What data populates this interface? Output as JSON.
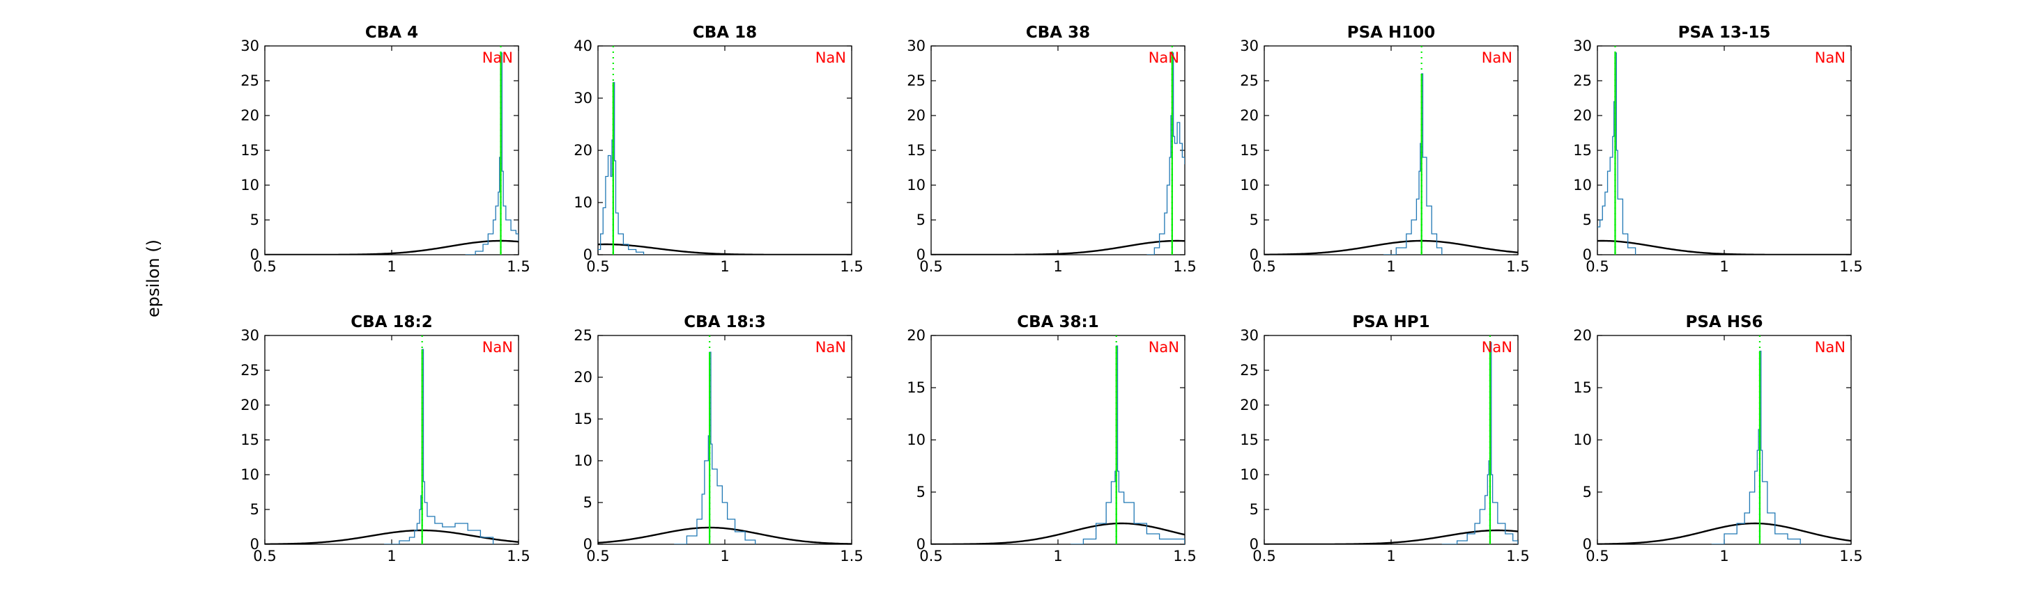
{
  "figure": {
    "ylabel": "epsilon ()",
    "colors": {
      "histogram": "#1f77b4",
      "gaussian": "#000000",
      "peak_line": "#00ee00",
      "nan_label": "#ff0000",
      "axes": "#000000"
    }
  },
  "chart_data": [
    {
      "type": "line",
      "title": "CBA 4",
      "annotation": "NaN",
      "xlim": [
        0.5,
        1.5
      ],
      "xticks": [
        0.5,
        1,
        1.5
      ],
      "ylim": [
        0,
        30
      ],
      "yticks": [
        0,
        5,
        10,
        15,
        20,
        25,
        30
      ],
      "peak_x": 1.43,
      "peak_y": 29,
      "mu": 1.43,
      "sigma": 0.2,
      "gauss_peak": 2.0,
      "series": [
        {
          "x": [
            1.29,
            1.33,
            1.36,
            1.38,
            1.4,
            1.41,
            1.42,
            1.425,
            1.43,
            1.435,
            1.44,
            1.45,
            1.47,
            1.49,
            1.5
          ],
          "y": [
            0,
            0.5,
            1.5,
            3,
            5,
            7,
            9,
            14,
            29,
            12,
            7,
            5,
            3.5,
            3,
            2
          ]
        }
      ]
    },
    {
      "type": "line",
      "title": "CBA 18",
      "annotation": "NaN",
      "xlim": [
        0.5,
        1.5
      ],
      "xticks": [
        0.5,
        1,
        1.5
      ],
      "ylim": [
        0,
        40
      ],
      "yticks": [
        0,
        10,
        20,
        30,
        40
      ],
      "peak_x": 0.56,
      "peak_y": 33,
      "mu": 0.53,
      "sigma": 0.2,
      "gauss_peak": 2.0,
      "series": [
        {
          "x": [
            0.5,
            0.51,
            0.52,
            0.53,
            0.54,
            0.55,
            0.555,
            0.56,
            0.565,
            0.57,
            0.58,
            0.6,
            0.62,
            0.65,
            0.68
          ],
          "y": [
            1,
            4,
            9,
            15,
            19,
            15,
            22,
            33,
            18,
            8,
            4,
            2,
            1,
            0.5,
            0
          ]
        }
      ]
    },
    {
      "type": "line",
      "title": "CBA 38",
      "annotation": "NaN",
      "xlim": [
        0.5,
        1.5
      ],
      "xticks": [
        0.5,
        1,
        1.5
      ],
      "ylim": [
        0,
        30
      ],
      "yticks": [
        0,
        5,
        10,
        15,
        20,
        25,
        30
      ],
      "peak_x": 1.45,
      "peak_y": 29,
      "mu": 1.47,
      "sigma": 0.2,
      "gauss_peak": 2.0,
      "series": [
        {
          "x": [
            1.35,
            1.38,
            1.4,
            1.42,
            1.43,
            1.44,
            1.445,
            1.45,
            1.455,
            1.46,
            1.47,
            1.48,
            1.49,
            1.5
          ],
          "y": [
            0,
            1,
            3,
            6,
            10,
            14,
            20,
            29,
            17,
            16,
            19,
            16,
            14,
            13
          ]
        }
      ]
    },
    {
      "type": "line",
      "title": "PSA H100",
      "annotation": "NaN",
      "xlim": [
        0.5,
        1.5
      ],
      "xticks": [
        0.5,
        1,
        1.5
      ],
      "ylim": [
        0,
        30
      ],
      "yticks": [
        0,
        5,
        10,
        15,
        20,
        25,
        30
      ],
      "peak_x": 1.12,
      "peak_y": 26,
      "mu": 1.12,
      "sigma": 0.2,
      "gauss_peak": 2.0,
      "series": [
        {
          "x": [
            0.97,
            1.02,
            1.06,
            1.08,
            1.1,
            1.11,
            1.115,
            1.12,
            1.125,
            1.13,
            1.14,
            1.16,
            1.18,
            1.2
          ],
          "y": [
            0,
            1,
            3,
            5,
            8,
            12,
            16,
            26,
            14,
            14,
            7,
            3,
            1,
            0
          ]
        }
      ]
    },
    {
      "type": "line",
      "title": "PSA 13-15",
      "annotation": "NaN",
      "xlim": [
        0.5,
        1.5
      ],
      "xticks": [
        0.5,
        1,
        1.5
      ],
      "ylim": [
        0,
        30
      ],
      "yticks": [
        0,
        5,
        10,
        15,
        20,
        25,
        30
      ],
      "peak_x": 0.57,
      "peak_y": 29,
      "mu": 0.52,
      "sigma": 0.2,
      "gauss_peak": 2.0,
      "series": [
        {
          "x": [
            0.5,
            0.51,
            0.52,
            0.53,
            0.54,
            0.55,
            0.56,
            0.565,
            0.57,
            0.575,
            0.58,
            0.6,
            0.62,
            0.65
          ],
          "y": [
            4,
            5,
            7,
            9,
            12,
            14,
            17,
            22,
            29,
            15,
            8,
            3,
            1,
            0
          ]
        }
      ]
    },
    {
      "type": "line",
      "title": "CBA 18:2",
      "annotation": "NaN",
      "xlim": [
        0.5,
        1.5
      ],
      "xticks": [
        0.5,
        1,
        1.5
      ],
      "ylim": [
        0,
        30
      ],
      "yticks": [
        0,
        5,
        10,
        15,
        20,
        25,
        30
      ],
      "peak_x": 1.12,
      "peak_y": 28,
      "mu": 1.12,
      "sigma": 0.2,
      "gauss_peak": 2.0,
      "series": [
        {
          "x": [
            0.97,
            1.03,
            1.07,
            1.09,
            1.1,
            1.11,
            1.115,
            1.12,
            1.125,
            1.13,
            1.14,
            1.17,
            1.2,
            1.25,
            1.3,
            1.35,
            1.4
          ],
          "y": [
            0,
            0.5,
            1,
            2,
            3,
            5,
            7,
            28,
            9,
            6,
            4,
            3,
            2.5,
            3,
            2,
            1,
            0
          ]
        }
      ]
    },
    {
      "type": "line",
      "title": "CBA 18:3",
      "annotation": "NaN",
      "xlim": [
        0.5,
        1.5
      ],
      "xticks": [
        0.5,
        1,
        1.5
      ],
      "ylim": [
        0,
        25
      ],
      "yticks": [
        0,
        5,
        10,
        15,
        20,
        25
      ],
      "peak_x": 0.94,
      "peak_y": 23,
      "mu": 0.94,
      "sigma": 0.2,
      "gauss_peak": 2.0,
      "series": [
        {
          "x": [
            0.8,
            0.85,
            0.89,
            0.91,
            0.92,
            0.93,
            0.935,
            0.94,
            0.945,
            0.95,
            0.97,
            0.99,
            1.01,
            1.04,
            1.08,
            1.12
          ],
          "y": [
            0,
            1,
            3,
            6,
            10,
            10,
            13,
            23,
            12,
            9,
            7,
            5,
            3,
            1.5,
            0.5,
            0
          ]
        }
      ]
    },
    {
      "type": "line",
      "title": "CBA 38:1",
      "annotation": "NaN",
      "xlim": [
        0.5,
        1.5
      ],
      "xticks": [
        0.5,
        1,
        1.5
      ],
      "ylim": [
        0,
        20
      ],
      "yticks": [
        0,
        5,
        10,
        15,
        20
      ],
      "peak_x": 1.23,
      "peak_y": 19,
      "mu": 1.25,
      "sigma": 0.2,
      "gauss_peak": 2.0,
      "series": [
        {
          "x": [
            1.05,
            1.1,
            1.15,
            1.19,
            1.21,
            1.22,
            1.225,
            1.23,
            1.235,
            1.24,
            1.26,
            1.3,
            1.35,
            1.4,
            1.45,
            1.5
          ],
          "y": [
            0,
            0.5,
            2,
            4,
            6,
            6,
            7,
            19,
            7,
            5,
            4,
            2,
            1,
            0.5,
            0.5,
            0
          ]
        }
      ]
    },
    {
      "type": "line",
      "title": "PSA HP1",
      "annotation": "NaN",
      "xlim": [
        0.5,
        1.5
      ],
      "xticks": [
        0.5,
        1,
        1.5
      ],
      "ylim": [
        0,
        30
      ],
      "yticks": [
        0,
        5,
        10,
        15,
        20,
        25,
        30
      ],
      "peak_x": 1.39,
      "peak_y": 29,
      "mu": 1.42,
      "sigma": 0.2,
      "gauss_peak": 2.0,
      "series": [
        {
          "x": [
            1.2,
            1.26,
            1.3,
            1.33,
            1.35,
            1.37,
            1.38,
            1.385,
            1.39,
            1.395,
            1.4,
            1.42,
            1.45,
            1.48,
            1.5
          ],
          "y": [
            0,
            0.5,
            1.5,
            3,
            5,
            7,
            10,
            12,
            29,
            10,
            6,
            3,
            1.5,
            0.5,
            0
          ]
        }
      ]
    },
    {
      "type": "line",
      "title": "PSA HS6",
      "annotation": "NaN",
      "xlim": [
        0.5,
        1.5
      ],
      "xticks": [
        0.5,
        1,
        1.5
      ],
      "ylim": [
        0,
        20
      ],
      "yticks": [
        0,
        5,
        10,
        15,
        20
      ],
      "peak_x": 1.14,
      "peak_y": 18.5,
      "mu": 1.12,
      "sigma": 0.2,
      "gauss_peak": 2.0,
      "series": [
        {
          "x": [
            0.95,
            1.0,
            1.05,
            1.08,
            1.1,
            1.12,
            1.13,
            1.135,
            1.14,
            1.145,
            1.15,
            1.17,
            1.2,
            1.25,
            1.3
          ],
          "y": [
            0,
            1,
            2,
            3,
            5,
            7,
            9,
            11,
            18.5,
            9,
            6,
            3,
            1,
            0.5,
            0
          ]
        }
      ]
    }
  ]
}
